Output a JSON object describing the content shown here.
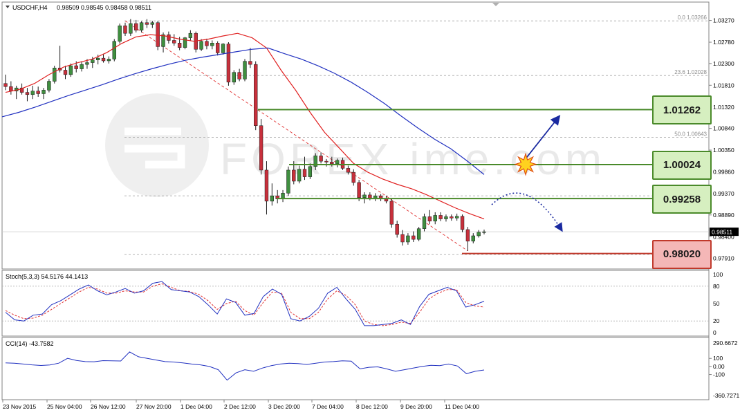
{
  "header": {
    "symbol": "USDCHF,H4",
    "ohlc": "0.98509 0.98545 0.98458 0.98511"
  },
  "watermark": "FOREX ime.com",
  "fib_labels": [
    {
      "text": "0.0  1.03266",
      "price": 1.0326
    },
    {
      "text": "23.6  1.02028",
      "price": 1.0203
    },
    {
      "text": "50.0  1.00643",
      "price": 1.0064
    }
  ],
  "price_axis": [
    "1.03270",
    "1.02780",
    "1.02300",
    "1.01810",
    "1.01320",
    "1.00840",
    "1.00350",
    "0.99860",
    "0.99370",
    "0.98890",
    "0.98400",
    "0.97910"
  ],
  "current_price": "0.98511",
  "level_boxes": [
    {
      "label": "1.01262",
      "price": 1.01262,
      "kind": "resistance"
    },
    {
      "label": "1.00024",
      "price": 1.00024,
      "kind": "resistance"
    },
    {
      "label": "0.99258",
      "price": 0.99258,
      "kind": "support"
    },
    {
      "label": "0.98020",
      "price": 0.9802,
      "kind": "target"
    }
  ],
  "stoch": {
    "label": "Stoch(5,3,3) 54.5176 44.1413",
    "axis": [
      "100",
      "80",
      "50",
      "20",
      "0"
    ]
  },
  "cci": {
    "label": "CCI(14) -43.7582",
    "axis": [
      "290.6672",
      "100",
      "0.00",
      "-100",
      "-360.7271"
    ]
  },
  "time_axis": [
    "23 Nov 2015",
    "25 Nov 04:00",
    "26 Nov 12:00",
    "27 Nov 20:00",
    "1 Dec 04:00",
    "2 Dec 12:00",
    "3 Dec 20:00",
    "7 Dec 04:00",
    "8 Dec 12:00",
    "9 Dec 20:00",
    "11 Dec 04:00"
  ],
  "colors": {
    "bull": "#3f8f3f",
    "bear": "#c8303c",
    "ma_fast": "#e02020",
    "ma_slow": "#2030c0",
    "level_green": "#4a8a2a",
    "level_red": "#c0392b",
    "arrow": "#1a2aa0"
  },
  "chart_data": {
    "type": "candlestick",
    "title": "USDCHF,H4",
    "ylim": [
      0.9775,
      1.0345
    ],
    "candles": [
      {
        "o": 1.0185,
        "h": 1.0205,
        "l": 1.017,
        "c": 1.0178
      },
      {
        "o": 1.0178,
        "h": 1.019,
        "l": 1.016,
        "c": 1.0168
      },
      {
        "o": 1.0168,
        "h": 1.018,
        "l": 1.015,
        "c": 1.0175
      },
      {
        "o": 1.0175,
        "h": 1.0185,
        "l": 1.016,
        "c": 1.0165
      },
      {
        "o": 1.0165,
        "h": 1.0175,
        "l": 1.0145,
        "c": 1.016
      },
      {
        "o": 1.016,
        "h": 1.018,
        "l": 1.015,
        "c": 1.0168
      },
      {
        "o": 1.0168,
        "h": 1.0178,
        "l": 1.0155,
        "c": 1.0162
      },
      {
        "o": 1.0162,
        "h": 1.0175,
        "l": 1.015,
        "c": 1.017
      },
      {
        "o": 1.017,
        "h": 1.0195,
        "l": 1.0165,
        "c": 1.019
      },
      {
        "o": 1.019,
        "h": 1.0225,
        "l": 1.0185,
        "c": 1.022
      },
      {
        "o": 1.022,
        "h": 1.027,
        "l": 1.021,
        "c": 1.0215
      },
      {
        "o": 1.0215,
        "h": 1.0225,
        "l": 1.0195,
        "c": 1.0205
      },
      {
        "o": 1.0205,
        "h": 1.023,
        "l": 1.02,
        "c": 1.0225
      },
      {
        "o": 1.0225,
        "h": 1.0235,
        "l": 1.021,
        "c": 1.0218
      },
      {
        "o": 1.0218,
        "h": 1.0235,
        "l": 1.0212,
        "c": 1.0228
      },
      {
        "o": 1.0228,
        "h": 1.024,
        "l": 1.0218,
        "c": 1.0232
      },
      {
        "o": 1.0232,
        "h": 1.0245,
        "l": 1.022,
        "c": 1.0238
      },
      {
        "o": 1.0238,
        "h": 1.025,
        "l": 1.0228,
        "c": 1.0242
      },
      {
        "o": 1.0242,
        "h": 1.0252,
        "l": 1.0232,
        "c": 1.0236
      },
      {
        "o": 1.0236,
        "h": 1.0246,
        "l": 1.023,
        "c": 1.024
      },
      {
        "o": 1.024,
        "h": 1.0285,
        "l": 1.0235,
        "c": 1.028
      },
      {
        "o": 1.028,
        "h": 1.032,
        "l": 1.0275,
        "c": 1.0315
      },
      {
        "o": 1.0315,
        "h": 1.0322,
        "l": 1.0292,
        "c": 1.0298
      },
      {
        "o": 1.0298,
        "h": 1.033,
        "l": 1.0292,
        "c": 1.032
      },
      {
        "o": 1.032,
        "h": 1.0328,
        "l": 1.03,
        "c": 1.0305
      },
      {
        "o": 1.0305,
        "h": 1.0325,
        "l": 1.03,
        "c": 1.0322
      },
      {
        "o": 1.0322,
        "h": 1.033,
        "l": 1.031,
        "c": 1.0318
      },
      {
        "o": 1.0318,
        "h": 1.0326,
        "l": 1.031,
        "c": 1.0322
      },
      {
        "o": 1.0322,
        "h": 1.0326,
        "l": 1.026,
        "c": 1.0268
      },
      {
        "o": 1.0268,
        "h": 1.03,
        "l": 1.0255,
        "c": 1.0295
      },
      {
        "o": 1.0295,
        "h": 1.0302,
        "l": 1.0275,
        "c": 1.0282
      },
      {
        "o": 1.0282,
        "h": 1.0296,
        "l": 1.027,
        "c": 1.0276
      },
      {
        "o": 1.0276,
        "h": 1.029,
        "l": 1.026,
        "c": 1.0266
      },
      {
        "o": 1.0266,
        "h": 1.029,
        "l": 1.0262,
        "c": 1.0288
      },
      {
        "o": 1.0288,
        "h": 1.0305,
        "l": 1.0282,
        "c": 1.0298
      },
      {
        "o": 1.0298,
        "h": 1.0302,
        "l": 1.0255,
        "c": 1.0262
      },
      {
        "o": 1.0262,
        "h": 1.0285,
        "l": 1.0258,
        "c": 1.028
      },
      {
        "o": 1.028,
        "h": 1.0286,
        "l": 1.0262,
        "c": 1.027
      },
      {
        "o": 1.027,
        "h": 1.0282,
        "l": 1.0262,
        "c": 1.0276
      },
      {
        "o": 1.0276,
        "h": 1.028,
        "l": 1.0248,
        "c": 1.0254
      },
      {
        "o": 1.0254,
        "h": 1.0276,
        "l": 1.025,
        "c": 1.0274
      },
      {
        "o": 1.0274,
        "h": 1.0278,
        "l": 1.018,
        "c": 1.0188
      },
      {
        "o": 1.0188,
        "h": 1.0215,
        "l": 1.0182,
        "c": 1.021
      },
      {
        "o": 1.021,
        "h": 1.0218,
        "l": 1.019,
        "c": 1.0195
      },
      {
        "o": 1.0195,
        "h": 1.024,
        "l": 1.019,
        "c": 1.0235
      },
      {
        "o": 1.0235,
        "h": 1.0265,
        "l": 1.022,
        "c": 1.0228
      },
      {
        "o": 1.0228,
        "h": 1.0235,
        "l": 1.008,
        "c": 1.009
      },
      {
        "o": 1.009,
        "h": 1.0105,
        "l": 0.998,
        "c": 0.999
      },
      {
        "o": 0.999,
        "h": 1.001,
        "l": 0.989,
        "c": 0.992
      },
      {
        "o": 0.992,
        "h": 0.996,
        "l": 0.991,
        "c": 0.9932
      },
      {
        "o": 0.9932,
        "h": 0.9945,
        "l": 0.9915,
        "c": 0.9925
      },
      {
        "o": 0.9925,
        "h": 0.9945,
        "l": 0.9918,
        "c": 0.9938
      },
      {
        "o": 0.9938,
        "h": 0.9998,
        "l": 0.9932,
        "c": 0.999
      },
      {
        "o": 0.999,
        "h": 1.001,
        "l": 0.9958,
        "c": 0.9965
      },
      {
        "o": 0.9965,
        "h": 1.0,
        "l": 0.996,
        "c": 0.9992
      },
      {
        "o": 0.9992,
        "h": 1.002,
        "l": 0.9968,
        "c": 0.9975
      },
      {
        "o": 0.9975,
        "h": 1.0005,
        "l": 0.997,
        "c": 0.9998
      },
      {
        "o": 0.9998,
        "h": 1.0028,
        "l": 0.999,
        "c": 1.0022
      },
      {
        "o": 1.0022,
        "h": 1.003,
        "l": 1.0005,
        "c": 1.001
      },
      {
        "o": 1.001,
        "h": 1.0015,
        "l": 0.9998,
        "c": 1.0008
      },
      {
        "o": 1.0008,
        "h": 1.002,
        "l": 0.9998,
        "c": 1.0004
      },
      {
        "o": 1.0004,
        "h": 1.0016,
        "l": 0.9996,
        "c": 1.0012
      },
      {
        "o": 1.0012,
        "h": 1.0018,
        "l": 0.999,
        "c": 0.9994
      },
      {
        "o": 0.9994,
        "h": 1.0,
        "l": 0.998,
        "c": 0.9985
      },
      {
        "o": 0.9985,
        "h": 0.9992,
        "l": 0.9955,
        "c": 0.9962
      },
      {
        "o": 0.9962,
        "h": 0.9968,
        "l": 0.992,
        "c": 0.9928
      },
      {
        "o": 0.9928,
        "h": 0.994,
        "l": 0.9915,
        "c": 0.9934
      },
      {
        "o": 0.9934,
        "h": 0.994,
        "l": 0.9922,
        "c": 0.9926
      },
      {
        "o": 0.9926,
        "h": 0.9938,
        "l": 0.992,
        "c": 0.9932
      },
      {
        "o": 0.9932,
        "h": 0.9936,
        "l": 0.992,
        "c": 0.9925
      },
      {
        "o": 0.9925,
        "h": 0.9932,
        "l": 0.9915,
        "c": 0.992
      },
      {
        "o": 0.992,
        "h": 0.9925,
        "l": 0.986,
        "c": 0.9868
      },
      {
        "o": 0.9868,
        "h": 0.9876,
        "l": 0.9838,
        "c": 0.9845
      },
      {
        "o": 0.9845,
        "h": 0.9855,
        "l": 0.982,
        "c": 0.9828
      },
      {
        "o": 0.9828,
        "h": 0.9848,
        "l": 0.9822,
        "c": 0.9842
      },
      {
        "o": 0.9842,
        "h": 0.9852,
        "l": 0.9828,
        "c": 0.9834
      },
      {
        "o": 0.9834,
        "h": 0.9862,
        "l": 0.983,
        "c": 0.9858
      },
      {
        "o": 0.9858,
        "h": 0.9892,
        "l": 0.9852,
        "c": 0.9885
      },
      {
        "o": 0.9885,
        "h": 0.99,
        "l": 0.9868,
        "c": 0.9875
      },
      {
        "o": 0.9875,
        "h": 0.9895,
        "l": 0.9868,
        "c": 0.9888
      },
      {
        "o": 0.9888,
        "h": 0.9895,
        "l": 0.9875,
        "c": 0.988
      },
      {
        "o": 0.988,
        "h": 0.989,
        "l": 0.9874,
        "c": 0.9885
      },
      {
        "o": 0.9885,
        "h": 0.989,
        "l": 0.9876,
        "c": 0.9882
      },
      {
        "o": 0.9882,
        "h": 0.9892,
        "l": 0.9876,
        "c": 0.9886
      },
      {
        "o": 0.9886,
        "h": 0.989,
        "l": 0.985,
        "c": 0.9856
      },
      {
        "o": 0.9856,
        "h": 0.9862,
        "l": 0.9808,
        "c": 0.983
      },
      {
        "o": 0.983,
        "h": 0.9848,
        "l": 0.9825,
        "c": 0.9842
      },
      {
        "o": 0.9842,
        "h": 0.9855,
        "l": 0.9838,
        "c": 0.985
      },
      {
        "o": 0.985,
        "h": 0.9856,
        "l": 0.9845,
        "c": 0.9851
      }
    ],
    "ma_fast": [
      1.0165,
      1.0172,
      1.0185,
      1.0205,
      1.0222,
      1.0232,
      1.024,
      1.0255,
      1.0275,
      1.029,
      1.0295,
      1.0292,
      1.0285,
      1.028,
      1.0285,
      1.0292,
      1.0298,
      1.0288,
      1.0265,
      1.0215,
      1.017,
      1.012,
      1.0075,
      1.004,
      1.0005,
      0.9985,
      0.997,
      0.9958,
      0.9948,
      0.9935,
      0.992,
      0.9905,
      0.9892,
      0.988
    ],
    "ma_slow": [
      1.011,
      1.012,
      1.0132,
      1.0145,
      1.0158,
      1.017,
      1.0182,
      1.0195,
      1.0207,
      1.0218,
      1.0228,
      1.0237,
      1.0244,
      1.025,
      1.0256,
      1.0262,
      1.0265,
      1.0252,
      1.024,
      1.0225,
      1.0208,
      1.0188,
      1.0165,
      1.014,
      1.0112,
      1.0085,
      1.006,
      1.0038,
      1.001,
      0.998
    ],
    "stoch_main": [
      35,
      22,
      20,
      30,
      32,
      48,
      55,
      65,
      75,
      82,
      72,
      65,
      70,
      76,
      68,
      72,
      85,
      88,
      74,
      72,
      70,
      62,
      48,
      32,
      58,
      52,
      30,
      33,
      62,
      75,
      66,
      24,
      20,
      28,
      42,
      68,
      78,
      58,
      40,
      12,
      12,
      14,
      16,
      22,
      14,
      45,
      66,
      72,
      78,
      72,
      44,
      48,
      54
    ],
    "stoch_signal": [
      38,
      30,
      24,
      25,
      30,
      40,
      50,
      60,
      70,
      78,
      75,
      68,
      68,
      72,
      70,
      70,
      80,
      84,
      78,
      72,
      71,
      66,
      55,
      40,
      50,
      54,
      38,
      30,
      52,
      70,
      68,
      35,
      24,
      24,
      35,
      58,
      72,
      64,
      48,
      20,
      14,
      12,
      14,
      18,
      16,
      35,
      58,
      68,
      74,
      74,
      52,
      46,
      44
    ],
    "cci": [
      45,
      40,
      30,
      20,
      12,
      18,
      40,
      100,
      75,
      60,
      58,
      72,
      70,
      68,
      180,
      120,
      100,
      80,
      60,
      55,
      45,
      30,
      20,
      0,
      -40,
      -170,
      -80,
      -40,
      -60,
      -20,
      10,
      30,
      40,
      35,
      25,
      40,
      55,
      60,
      70,
      65,
      -30,
      -10,
      -5,
      -30,
      -60,
      -40,
      -20,
      0,
      15,
      10,
      30,
      5,
      -90,
      -60,
      -43.8
    ],
    "forecast": {
      "bullish_breakout_target": 1.01262,
      "bearish_target": 0.9802
    }
  }
}
